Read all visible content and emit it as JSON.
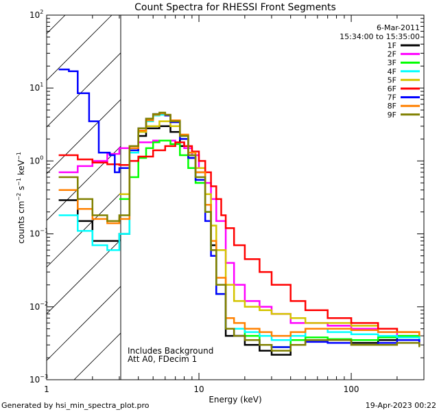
{
  "chart_data": {
    "type": "line",
    "title": "Count Spectra for RHESSI Front Segments",
    "xlabel": "Energy (keV)",
    "ylabel_parts": {
      "pre": "counts cm",
      "sup1": "−2",
      "mid1": " s",
      "sup2": "−1",
      "mid2": " keV",
      "sup3": "−1"
    },
    "xscale": "log",
    "yscale": "log",
    "xlim": [
      1,
      300
    ],
    "ylim": [
      0.001,
      100
    ],
    "x_ticks": [
      {
        "value": 1,
        "label": "1"
      },
      {
        "value": 10,
        "label": "10"
      },
      {
        "value": 100,
        "label": "100"
      }
    ],
    "y_ticks": [
      {
        "value": 0.001,
        "base": "10",
        "exp": "−3"
      },
      {
        "value": 0.01,
        "base": "10",
        "exp": "−2"
      },
      {
        "value": 0.1,
        "base": "10",
        "exp": "−1"
      },
      {
        "value": 1,
        "base": "10",
        "exp": "0"
      },
      {
        "value": 10,
        "base": "10",
        "exp": "1"
      },
      {
        "value": 100,
        "base": "10",
        "exp": "2"
      }
    ],
    "hatched_region_keV": [
      1,
      3
    ],
    "date": "6-Mar-2011",
    "time_range": "15:34:00 to 15:35:00",
    "annotations": [
      "Includes Background",
      "Att A0, FDecim 1"
    ],
    "footer_left": "Generated by hsi_min_spectra_plot.pro",
    "footer_right": "19-Apr-2023 00:22",
    "series": [
      {
        "name": "1F",
        "color": "#000000",
        "points": [
          [
            1.2,
            0.29
          ],
          [
            1.6,
            0.15
          ],
          [
            2,
            0.08
          ],
          [
            2.5,
            0.08
          ],
          [
            3,
            0.1
          ],
          [
            3.5,
            1.3
          ],
          [
            4,
            2.2
          ],
          [
            4.5,
            2.8
          ],
          [
            5.5,
            3.0
          ],
          [
            6.5,
            2.5
          ],
          [
            7.5,
            1.6
          ],
          [
            8.5,
            1.1
          ],
          [
            9.5,
            0.7
          ],
          [
            11,
            0.25
          ],
          [
            12,
            0.07
          ],
          [
            13,
            0.02
          ],
          [
            15,
            0.004
          ],
          [
            17,
            0.004
          ],
          [
            20,
            0.003
          ],
          [
            25,
            0.0025
          ],
          [
            30,
            0.0022
          ],
          [
            40,
            0.003
          ],
          [
            50,
            0.0035
          ],
          [
            70,
            0.0035
          ],
          [
            100,
            0.0032
          ],
          [
            150,
            0.0035
          ],
          [
            200,
            0.0038
          ],
          [
            280,
            0.003
          ]
        ]
      },
      {
        "name": "2F",
        "color": "#ff00ff",
        "points": [
          [
            1.2,
            0.7
          ],
          [
            1.6,
            0.85
          ],
          [
            2,
            1.0
          ],
          [
            2.5,
            1.25
          ],
          [
            3,
            1.5
          ],
          [
            3.5,
            1.6
          ],
          [
            4,
            1.8
          ],
          [
            5,
            1.9
          ],
          [
            6,
            1.9
          ],
          [
            7,
            1.8
          ],
          [
            8,
            1.5
          ],
          [
            9,
            1.2
          ],
          [
            10,
            0.8
          ],
          [
            11,
            0.5
          ],
          [
            12,
            0.3
          ],
          [
            13,
            0.15
          ],
          [
            15,
            0.04
          ],
          [
            17,
            0.02
          ],
          [
            20,
            0.012
          ],
          [
            25,
            0.01
          ],
          [
            30,
            0.008
          ],
          [
            40,
            0.006
          ],
          [
            50,
            0.006
          ],
          [
            70,
            0.0055
          ],
          [
            100,
            0.005
          ],
          [
            150,
            0.0045
          ],
          [
            200,
            0.004
          ],
          [
            280,
            0.003
          ]
        ]
      },
      {
        "name": "3F",
        "color": "#00ff00",
        "points": [
          [
            3,
            0.3
          ],
          [
            3.5,
            0.6
          ],
          [
            4,
            1.1
          ],
          [
            4.5,
            1.5
          ],
          [
            5,
            1.8
          ],
          [
            5.5,
            1.9
          ],
          [
            6.5,
            1.7
          ],
          [
            7.5,
            1.2
          ],
          [
            8.5,
            0.8
          ],
          [
            9.5,
            0.5
          ],
          [
            11,
            0.2
          ],
          [
            12,
            0.06
          ],
          [
            13,
            0.015
          ],
          [
            15,
            0.005
          ],
          [
            17,
            0.005
          ],
          [
            20,
            0.004
          ],
          [
            25,
            0.003
          ],
          [
            30,
            0.0028
          ],
          [
            40,
            0.0035
          ],
          [
            50,
            0.0038
          ],
          [
            70,
            0.0036
          ],
          [
            100,
            0.0035
          ],
          [
            150,
            0.0038
          ],
          [
            200,
            0.004
          ],
          [
            280,
            0.0035
          ]
        ]
      },
      {
        "name": "4F",
        "color": "#00ffff",
        "points": [
          [
            1.2,
            0.18
          ],
          [
            1.6,
            0.11
          ],
          [
            2,
            0.07
          ],
          [
            2.5,
            0.06
          ],
          [
            3,
            0.1
          ],
          [
            3.5,
            1.3
          ],
          [
            4,
            2.5
          ],
          [
            4.5,
            3.5
          ],
          [
            5,
            4.2
          ],
          [
            5.5,
            4.3
          ],
          [
            6,
            4.2
          ],
          [
            6.5,
            3.6
          ],
          [
            7.5,
            2.2
          ],
          [
            8.5,
            1.2
          ],
          [
            9.5,
            0.6
          ],
          [
            11,
            0.2
          ],
          [
            12,
            0.06
          ],
          [
            13,
            0.02
          ],
          [
            15,
            0.005
          ],
          [
            17,
            0.005
          ],
          [
            20,
            0.0045
          ],
          [
            25,
            0.004
          ],
          [
            30,
            0.0035
          ],
          [
            40,
            0.004
          ],
          [
            50,
            0.005
          ],
          [
            70,
            0.0045
          ],
          [
            100,
            0.0042
          ],
          [
            150,
            0.004
          ],
          [
            200,
            0.0038
          ],
          [
            280,
            0.0035
          ]
        ]
      },
      {
        "name": "5F",
        "color": "#d4c400",
        "points": [
          [
            3,
            0.35
          ],
          [
            3.5,
            1.4
          ],
          [
            4,
            2.5
          ],
          [
            4.5,
            3.0
          ],
          [
            5.5,
            3.5
          ],
          [
            6.5,
            3.0
          ],
          [
            7.5,
            2.0
          ],
          [
            8.5,
            1.3
          ],
          [
            9.5,
            0.8
          ],
          [
            11,
            0.35
          ],
          [
            12,
            0.13
          ],
          [
            13,
            0.06
          ],
          [
            15,
            0.02
          ],
          [
            17,
            0.012
          ],
          [
            20,
            0.01
          ],
          [
            25,
            0.009
          ],
          [
            30,
            0.008
          ],
          [
            40,
            0.007
          ],
          [
            50,
            0.006
          ],
          [
            70,
            0.006
          ],
          [
            100,
            0.0055
          ],
          [
            150,
            0.005
          ],
          [
            200,
            0.0045
          ],
          [
            280,
            0.004
          ]
        ]
      },
      {
        "name": "6F",
        "color": "#ff0000",
        "points": [
          [
            1.2,
            1.2
          ],
          [
            1.6,
            1.05
          ],
          [
            2,
            0.95
          ],
          [
            2.5,
            0.9
          ],
          [
            3,
            0.88
          ],
          [
            3.5,
            1.0
          ],
          [
            4,
            1.15
          ],
          [
            5,
            1.4
          ],
          [
            6,
            1.6
          ],
          [
            7,
            1.8
          ],
          [
            8,
            1.6
          ],
          [
            9,
            1.35
          ],
          [
            10,
            1.0
          ],
          [
            11,
            0.7
          ],
          [
            12,
            0.45
          ],
          [
            13,
            0.3
          ],
          [
            14,
            0.18
          ],
          [
            15,
            0.12
          ],
          [
            17,
            0.07
          ],
          [
            20,
            0.045
          ],
          [
            25,
            0.03
          ],
          [
            30,
            0.02
          ],
          [
            40,
            0.012
          ],
          [
            50,
            0.009
          ],
          [
            70,
            0.007
          ],
          [
            100,
            0.006
          ],
          [
            150,
            0.005
          ],
          [
            200,
            0.0045
          ],
          [
            280,
            0.004
          ]
        ]
      },
      {
        "name": "7F",
        "color": "#0000ff",
        "points": [
          [
            1.2,
            18
          ],
          [
            1.4,
            17
          ],
          [
            1.6,
            8.5
          ],
          [
            1.9,
            3.5
          ],
          [
            2.2,
            1.3
          ],
          [
            2.6,
            1.2
          ],
          [
            2.8,
            0.7
          ],
          [
            3,
            0.8
          ],
          [
            3.5,
            1.4
          ],
          [
            4,
            2.8
          ],
          [
            4.5,
            3.8
          ],
          [
            5,
            4.4
          ],
          [
            5.5,
            4.5
          ],
          [
            6,
            4.2
          ],
          [
            6.5,
            3.4
          ],
          [
            7.5,
            2.0
          ],
          [
            8.5,
            1.1
          ],
          [
            9.5,
            0.55
          ],
          [
            11,
            0.15
          ],
          [
            12,
            0.05
          ],
          [
            13,
            0.015
          ],
          [
            15,
            0.005
          ],
          [
            17,
            0.004
          ],
          [
            20,
            0.0035
          ],
          [
            25,
            0.003
          ],
          [
            30,
            0.0028
          ],
          [
            40,
            0.003
          ],
          [
            50,
            0.0033
          ],
          [
            70,
            0.0032
          ],
          [
            100,
            0.003
          ],
          [
            150,
            0.0032
          ],
          [
            200,
            0.0035
          ],
          [
            280,
            0.003
          ]
        ]
      },
      {
        "name": "8F",
        "color": "#ff8000",
        "points": [
          [
            1.2,
            0.4
          ],
          [
            1.6,
            0.22
          ],
          [
            2,
            0.16
          ],
          [
            2.5,
            0.14
          ],
          [
            3,
            0.16
          ],
          [
            3.5,
            1.5
          ],
          [
            4,
            2.6
          ],
          [
            4.5,
            3.6
          ],
          [
            5,
            4.3
          ],
          [
            5.5,
            4.5
          ],
          [
            6,
            4.3
          ],
          [
            6.5,
            3.6
          ],
          [
            7.5,
            2.3
          ],
          [
            8.5,
            1.3
          ],
          [
            9.5,
            0.7
          ],
          [
            11,
            0.25
          ],
          [
            12,
            0.08
          ],
          [
            13,
            0.025
          ],
          [
            15,
            0.007
          ],
          [
            17,
            0.006
          ],
          [
            20,
            0.005
          ],
          [
            25,
            0.0045
          ],
          [
            30,
            0.004
          ],
          [
            40,
            0.0045
          ],
          [
            50,
            0.005
          ],
          [
            70,
            0.005
          ],
          [
            100,
            0.0048
          ],
          [
            150,
            0.0045
          ],
          [
            200,
            0.0045
          ],
          [
            280,
            0.004
          ]
        ]
      },
      {
        "name": "9F",
        "color": "#808000",
        "points": [
          [
            1.2,
            0.6
          ],
          [
            1.6,
            0.3
          ],
          [
            2,
            0.18
          ],
          [
            2.5,
            0.15
          ],
          [
            3,
            0.18
          ],
          [
            3.5,
            1.6
          ],
          [
            4,
            2.8
          ],
          [
            4.5,
            3.8
          ],
          [
            5,
            4.4
          ],
          [
            5.5,
            4.6
          ],
          [
            6,
            4.3
          ],
          [
            6.5,
            3.5
          ],
          [
            7.5,
            2.2
          ],
          [
            8.5,
            1.2
          ],
          [
            9.5,
            0.6
          ],
          [
            11,
            0.2
          ],
          [
            12,
            0.06
          ],
          [
            13,
            0.02
          ],
          [
            15,
            0.005
          ],
          [
            17,
            0.004
          ],
          [
            20,
            0.0035
          ],
          [
            25,
            0.003
          ],
          [
            30,
            0.0025
          ],
          [
            40,
            0.003
          ],
          [
            50,
            0.0035
          ],
          [
            70,
            0.0035
          ],
          [
            100,
            0.003
          ],
          [
            150,
            0.003
          ],
          [
            200,
            0.0032
          ],
          [
            280,
            0.0028
          ]
        ]
      }
    ]
  }
}
